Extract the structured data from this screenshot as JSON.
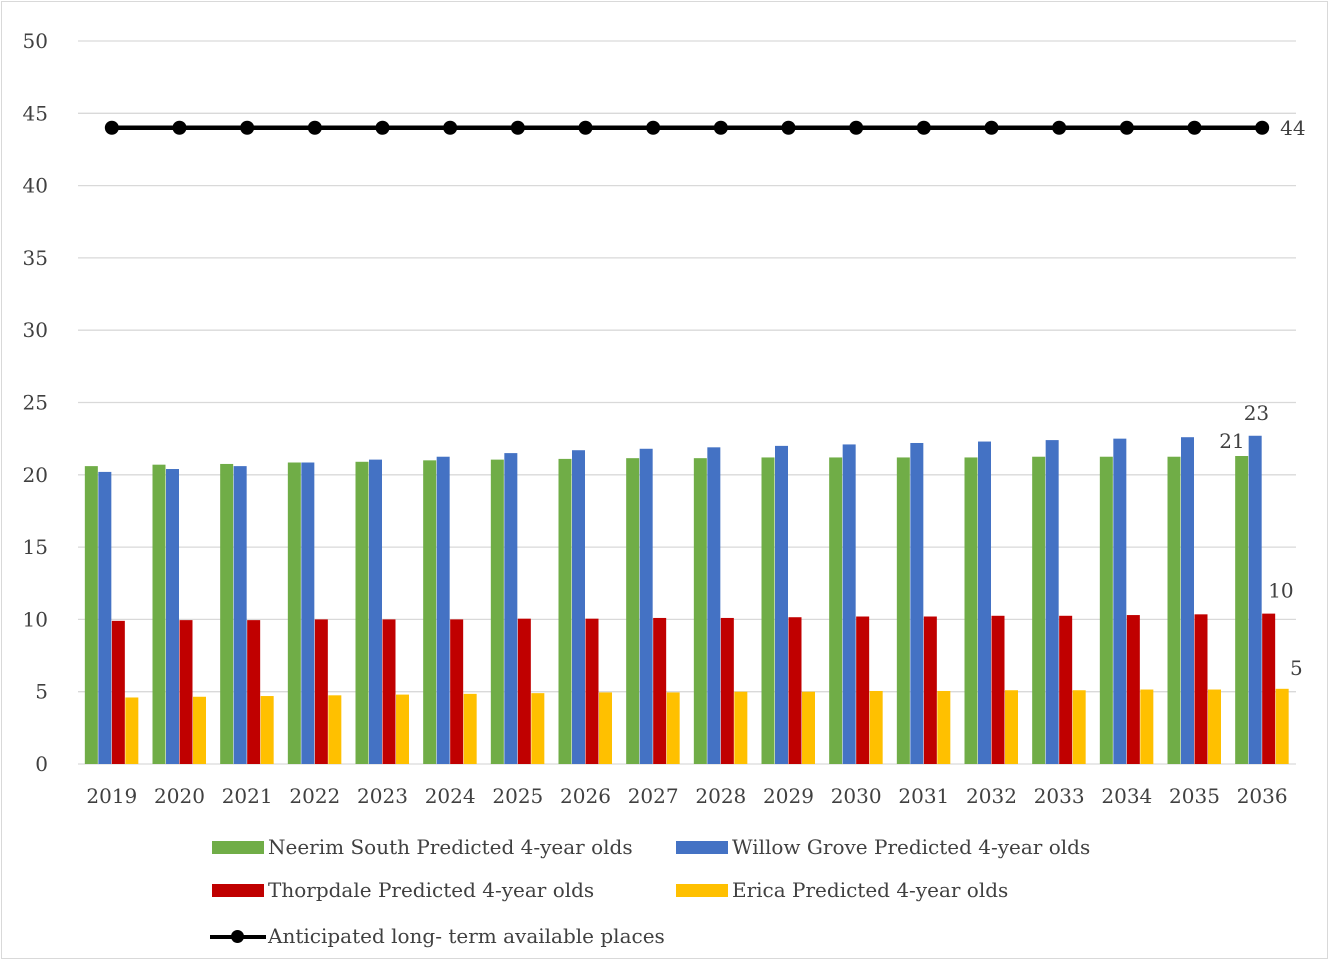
{
  "chart_data": {
    "type": "bar",
    "title": "",
    "xlabel": "",
    "ylabel": "",
    "ylim": [
      0,
      50
    ],
    "yticks": [
      "0",
      "5",
      "10",
      "15",
      "20",
      "25",
      "30",
      "35",
      "40",
      "45",
      "50"
    ],
    "grid": true,
    "legend_position": "bottom",
    "categories": [
      "2019",
      "2020",
      "2021",
      "2022",
      "2023",
      "2024",
      "2025",
      "2026",
      "2027",
      "2028",
      "2029",
      "2030",
      "2031",
      "2032",
      "2033",
      "2034",
      "2035",
      "2036"
    ],
    "series": [
      {
        "name": "Neerim South Predicted 4-year olds",
        "color": "#70ad47",
        "kind": "bar",
        "values": [
          20.6,
          20.7,
          20.75,
          20.85,
          20.9,
          21.0,
          21.05,
          21.1,
          21.15,
          21.15,
          21.2,
          21.2,
          21.2,
          21.2,
          21.25,
          21.25,
          21.25,
          21.3
        ],
        "end_label": "21"
      },
      {
        "name": "Willow Grove Predicted 4-year olds",
        "color": "#4472c4",
        "kind": "bar",
        "values": [
          20.2,
          20.4,
          20.6,
          20.85,
          21.05,
          21.25,
          21.5,
          21.7,
          21.8,
          21.9,
          22.0,
          22.1,
          22.2,
          22.3,
          22.4,
          22.5,
          22.6,
          22.7
        ],
        "end_label": "23"
      },
      {
        "name": "Thorpdale Predicted 4-year olds",
        "color": "#c00000",
        "kind": "bar",
        "values": [
          9.9,
          9.95,
          9.95,
          10.0,
          10.0,
          10.0,
          10.05,
          10.05,
          10.1,
          10.1,
          10.15,
          10.2,
          10.2,
          10.25,
          10.25,
          10.3,
          10.35,
          10.4
        ],
        "end_label": "10"
      },
      {
        "name": "Erica Predicted 4-year olds",
        "color": "#ffc000",
        "kind": "bar",
        "values": [
          4.6,
          4.65,
          4.7,
          4.75,
          4.8,
          4.85,
          4.9,
          4.95,
          4.95,
          5.0,
          5.0,
          5.05,
          5.05,
          5.1,
          5.1,
          5.15,
          5.15,
          5.2
        ],
        "end_label": "5"
      },
      {
        "name": "Anticipated long- term available places",
        "color": "#000000",
        "kind": "line",
        "values": [
          44,
          44,
          44,
          44,
          44,
          44,
          44,
          44,
          44,
          44,
          44,
          44,
          44,
          44,
          44,
          44,
          44,
          44
        ],
        "end_label": "44"
      }
    ]
  }
}
